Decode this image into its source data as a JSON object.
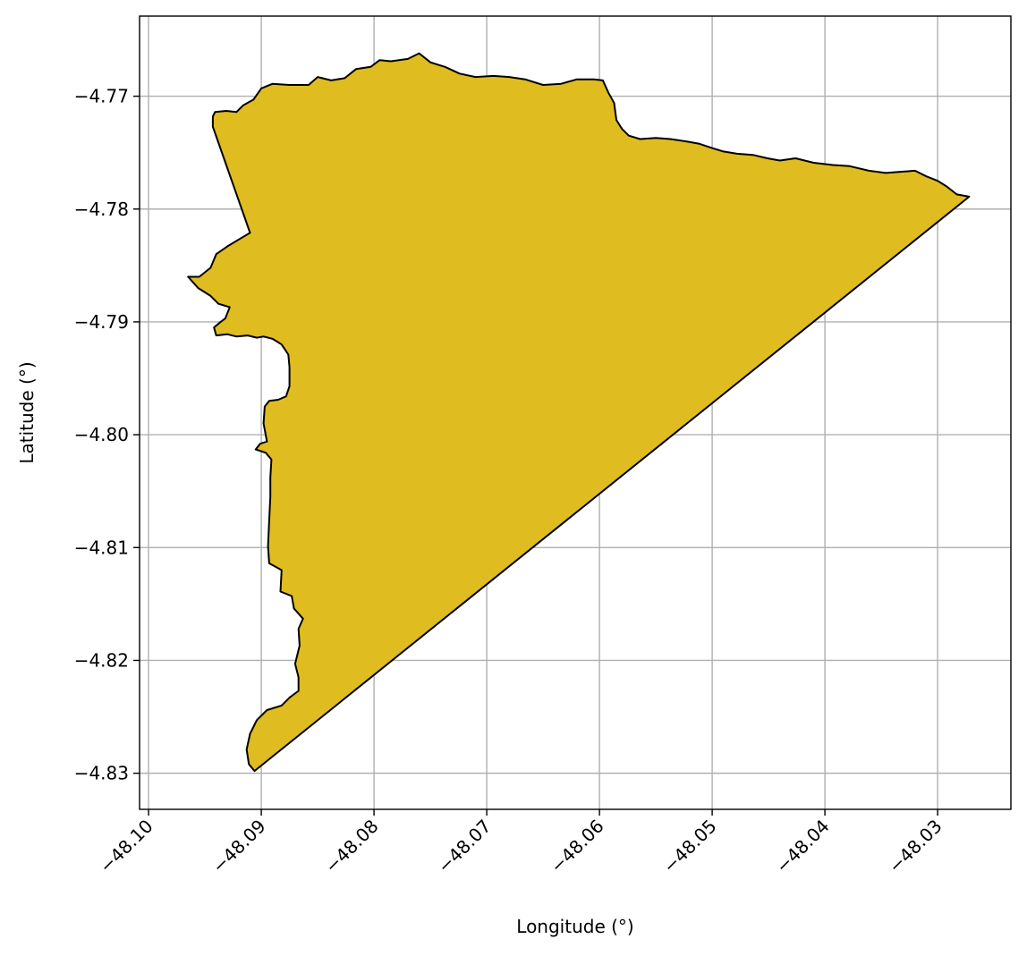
{
  "chart_data": {
    "type": "map",
    "title": "",
    "xlabel": "Longitude (°)",
    "ylabel": "Latitude (°)",
    "xlim": [
      -48.1008,
      -48.0235
    ],
    "ylim": [
      -4.8332,
      -4.7629
    ],
    "grid": true,
    "xticks": [
      -48.1,
      -48.09,
      -48.08,
      -48.07,
      -48.06,
      -48.05,
      -48.04,
      -48.03
    ],
    "xtick_labels": [
      "−48.10",
      "−48.09",
      "−48.08",
      "−48.07",
      "−48.06",
      "−48.05",
      "−48.04",
      "−48.03"
    ],
    "yticks": [
      -4.77,
      -4.78,
      -4.79,
      -4.8,
      -4.81,
      -4.82,
      -4.83
    ],
    "ytick_labels": [
      "−4.77",
      "−4.78",
      "−4.79",
      "−4.80",
      "−4.81",
      "−4.82",
      "−4.83"
    ],
    "colors": {
      "fill": "#dfbc20",
      "edge": "#000000",
      "grid": "#b0b0b0"
    },
    "polygon": [
      [
        -48.0941,
        -4.7714
      ],
      [
        -48.0931,
        -4.7713
      ],
      [
        -48.0922,
        -4.7714
      ],
      [
        -48.0916,
        -4.7708
      ],
      [
        -48.0907,
        -4.7703
      ],
      [
        -48.09,
        -4.7693
      ],
      [
        -48.089,
        -4.7689
      ],
      [
        -48.0875,
        -4.769
      ],
      [
        -48.0858,
        -4.769
      ],
      [
        -48.085,
        -4.7683
      ],
      [
        -48.0838,
        -4.7686
      ],
      [
        -48.0826,
        -4.7684
      ],
      [
        -48.0816,
        -4.7676
      ],
      [
        -48.0803,
        -4.7674
      ],
      [
        -48.0795,
        -4.7668
      ],
      [
        -48.0785,
        -4.7669
      ],
      [
        -48.077,
        -4.7667
      ],
      [
        -48.076,
        -4.7662
      ],
      [
        -48.075,
        -4.767
      ],
      [
        -48.0737,
        -4.7674
      ],
      [
        -48.0724,
        -4.768
      ],
      [
        -48.071,
        -4.7683
      ],
      [
        -48.0694,
        -4.7682
      ],
      [
        -48.068,
        -4.7683
      ],
      [
        -48.0666,
        -4.7685
      ],
      [
        -48.065,
        -4.769
      ],
      [
        -48.0634,
        -4.7689
      ],
      [
        -48.062,
        -4.7685
      ],
      [
        -48.0605,
        -4.7685
      ],
      [
        -48.0597,
        -4.7686
      ],
      [
        -48.0592,
        -4.7697
      ],
      [
        -48.0587,
        -4.7706
      ],
      [
        -48.0585,
        -4.7721
      ],
      [
        -48.058,
        -4.7729
      ],
      [
        -48.0574,
        -4.7735
      ],
      [
        -48.0564,
        -4.7738
      ],
      [
        -48.055,
        -4.7737
      ],
      [
        -48.0537,
        -4.7738
      ],
      [
        -48.0523,
        -4.774
      ],
      [
        -48.0512,
        -4.7742
      ],
      [
        -48.05,
        -4.7746
      ],
      [
        -48.049,
        -4.7749
      ],
      [
        -48.0478,
        -4.7751
      ],
      [
        -48.0464,
        -4.7752
      ],
      [
        -48.0451,
        -4.7755
      ],
      [
        -48.044,
        -4.7757
      ],
      [
        -48.0426,
        -4.7755
      ],
      [
        -48.041,
        -4.7759
      ],
      [
        -48.0393,
        -4.7761
      ],
      [
        -48.0378,
        -4.7762
      ],
      [
        -48.0361,
        -4.7766
      ],
      [
        -48.0346,
        -4.7768
      ],
      [
        -48.0333,
        -4.7767
      ],
      [
        -48.032,
        -4.7766
      ],
      [
        -48.031,
        -4.7771
      ],
      [
        -48.03,
        -4.7775
      ],
      [
        -48.0292,
        -4.778
      ],
      [
        -48.0283,
        -4.7787
      ],
      [
        -48.0272,
        -4.7789
      ],
      [
        -48.0906,
        -4.8298
      ],
      [
        -48.0911,
        -4.8292
      ],
      [
        -48.0913,
        -4.8279
      ],
      [
        -48.091,
        -4.8265
      ],
      [
        -48.0904,
        -4.8253
      ],
      [
        -48.0895,
        -4.8244
      ],
      [
        -48.0882,
        -4.824
      ],
      [
        -48.0875,
        -4.8233
      ],
      [
        -48.0867,
        -4.8227
      ],
      [
        -48.0867,
        -4.8215
      ],
      [
        -48.087,
        -4.8203
      ],
      [
        -48.0866,
        -4.8187
      ],
      [
        -48.0867,
        -4.8172
      ],
      [
        -48.0863,
        -4.8163
      ],
      [
        -48.0871,
        -4.8154
      ],
      [
        -48.0873,
        -4.8143
      ],
      [
        -48.0883,
        -4.8139
      ],
      [
        -48.0882,
        -4.812
      ],
      [
        -48.0893,
        -4.8114
      ],
      [
        -48.0894,
        -4.8099
      ],
      [
        -48.0893,
        -4.8076
      ],
      [
        -48.0892,
        -4.8055
      ],
      [
        -48.0892,
        -4.8038
      ],
      [
        -48.0891,
        -4.8022
      ],
      [
        -48.0896,
        -4.8016
      ],
      [
        -48.0905,
        -4.8013
      ],
      [
        -48.0901,
        -4.8008
      ],
      [
        -48.0895,
        -4.8006
      ],
      [
        -48.0898,
        -4.799
      ],
      [
        -48.0897,
        -4.7975
      ],
      [
        -48.0893,
        -4.797
      ],
      [
        -48.0885,
        -4.7969
      ],
      [
        -48.0878,
        -4.7966
      ],
      [
        -48.0875,
        -4.7957
      ],
      [
        -48.0875,
        -4.794
      ],
      [
        -48.0876,
        -4.7929
      ],
      [
        -48.0882,
        -4.792
      ],
      [
        -48.089,
        -4.7915
      ],
      [
        -48.0898,
        -4.7913
      ],
      [
        -48.0904,
        -4.7914
      ],
      [
        -48.0912,
        -4.7912
      ],
      [
        -48.0922,
        -4.7913
      ],
      [
        -48.093,
        -4.7911
      ],
      [
        -48.094,
        -4.7912
      ],
      [
        -48.0942,
        -4.7905
      ],
      [
        -48.0936,
        -4.79
      ],
      [
        -48.0932,
        -4.7897
      ],
      [
        -48.0928,
        -4.7887
      ],
      [
        -48.0938,
        -4.7884
      ],
      [
        -48.0945,
        -4.7877
      ],
      [
        -48.0956,
        -4.787
      ],
      [
        -48.0965,
        -4.786
      ],
      [
        -48.0955,
        -4.786
      ],
      [
        -48.0945,
        -4.7852
      ],
      [
        -48.094,
        -4.784
      ],
      [
        -48.093,
        -4.7833
      ],
      [
        -48.092,
        -4.7827
      ],
      [
        -48.091,
        -4.7821
      ],
      [
        -48.0943,
        -4.7727
      ],
      [
        -48.0943,
        -4.7718
      ]
    ]
  }
}
